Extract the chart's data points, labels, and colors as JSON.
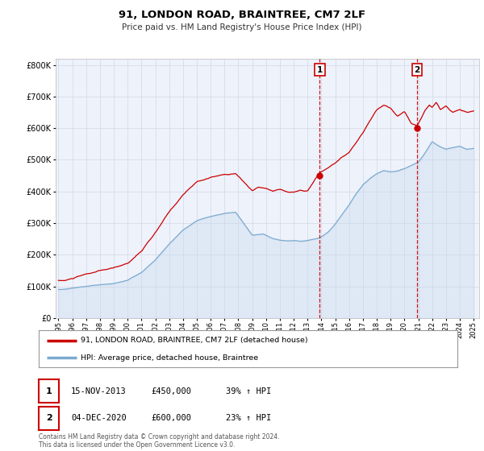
{
  "title": "91, LONDON ROAD, BRAINTREE, CM7 2LF",
  "subtitle": "Price paid vs. HM Land Registry's House Price Index (HPI)",
  "background_color": "#ffffff",
  "plot_bg_color": "#eef2fb",
  "grid_color": "#d8dce8",
  "red_line_color": "#cc0000",
  "blue_line_color": "#7aaad0",
  "blue_fill_color": "#c5d8ec",
  "sale1_x": 2013.88,
  "sale1_y": 450000,
  "sale2_x": 2020.92,
  "sale2_y": 600000,
  "vline_color": "#cc0000",
  "marker_color": "#cc0000",
  "legend_label_red": "91, LONDON ROAD, BRAINTREE, CM7 2LF (detached house)",
  "legend_label_blue": "HPI: Average price, detached house, Braintree",
  "annotation1_num": "1",
  "annotation1_date": "15-NOV-2013",
  "annotation1_price": "£450,000",
  "annotation1_hpi": "39% ↑ HPI",
  "annotation2_num": "2",
  "annotation2_date": "04-DEC-2020",
  "annotation2_price": "£600,000",
  "annotation2_hpi": "23% ↑ HPI",
  "footer": "Contains HM Land Registry data © Crown copyright and database right 2024.\nThis data is licensed under the Open Government Licence v3.0.",
  "ylim": [
    0,
    820000
  ],
  "xlim_start": 1994.8,
  "xlim_end": 2025.4
}
